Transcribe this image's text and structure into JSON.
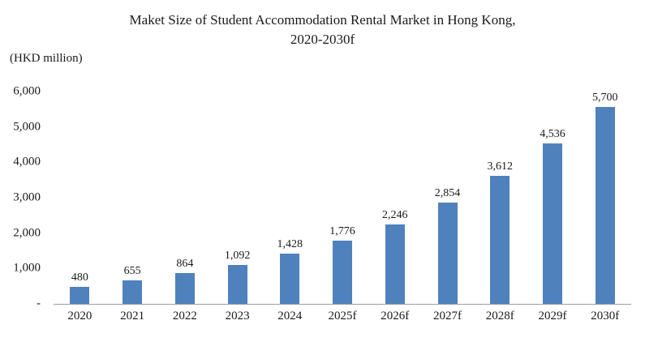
{
  "title_line1": "Maket Size of Student Accommodation Rental Market in Hong Kong,",
  "title_line2": "2020-2030f",
  "chart_data": {
    "type": "bar",
    "title": "Maket Size of Student Accommodation Rental Market in Hong Kong, 2020-2030f",
    "ylabel": "(HKD million)",
    "xlabel": "",
    "categories": [
      "2020",
      "2021",
      "2022",
      "2023",
      "2024",
      "2025f",
      "2026f",
      "2027f",
      "2028f",
      "2029f",
      "2030f"
    ],
    "values": [
      480,
      655,
      864,
      1092,
      1428,
      1776,
      2246,
      2854,
      3612,
      4536,
      5700
    ],
    "value_labels": [
      "480",
      "655",
      "864",
      "1,092",
      "1,428",
      "1,776",
      "2,246",
      "2,854",
      "3,612",
      "4,536",
      "5,700"
    ],
    "ylim": [
      0,
      6000
    ],
    "ytick_labels": [
      "-",
      "1,000",
      "2,000",
      "3,000",
      "4,000",
      "5,000",
      "6,000"
    ],
    "bar_color": "#4f81bd",
    "grid": false,
    "legend": false
  }
}
